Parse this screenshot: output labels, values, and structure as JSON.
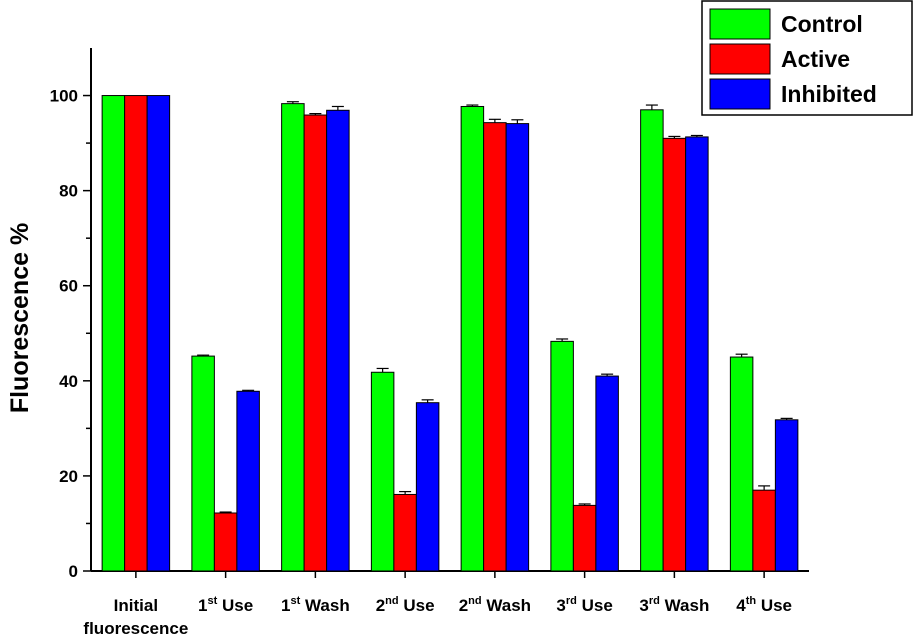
{
  "chart_data": {
    "type": "bar",
    "title": "",
    "ylabel": "Fluorescence %",
    "xlabel": "",
    "ylim": [
      0,
      110
    ],
    "yticks": [
      "0",
      "20",
      "40",
      "60",
      "80",
      "100"
    ],
    "grid": false,
    "legend_position": "top-right",
    "categories": [
      {
        "base": "Initial",
        "sup": "",
        "rest": "",
        "line2": "fluorescence"
      },
      {
        "base": "1",
        "sup": "st",
        "rest": " Use",
        "line2": ""
      },
      {
        "base": "1",
        "sup": "st",
        "rest": " Wash",
        "line2": ""
      },
      {
        "base": "2",
        "sup": "nd",
        "rest": " Use",
        "line2": ""
      },
      {
        "base": "2",
        "sup": "nd",
        "rest": " Wash",
        "line2": ""
      },
      {
        "base": "3",
        "sup": "rd",
        "rest": " Use",
        "line2": ""
      },
      {
        "base": "3",
        "sup": "rd",
        "rest": " Wash",
        "line2": ""
      },
      {
        "base": "4",
        "sup": "th",
        "rest": " Use",
        "line2": ""
      }
    ],
    "series": [
      {
        "name": "Control",
        "color": "#00ff00",
        "values": [
          100,
          45.2,
          98.3,
          41.8,
          97.7,
          48.3,
          97.0,
          45.0
        ],
        "errors": [
          0,
          0.2,
          0.4,
          0.8,
          0.3,
          0.5,
          1.0,
          0.6
        ]
      },
      {
        "name": "Active",
        "color": "#ff0000",
        "values": [
          100,
          12.2,
          95.9,
          16.1,
          94.3,
          13.8,
          91.0,
          17.0
        ],
        "errors": [
          0,
          0.2,
          0.3,
          0.6,
          0.7,
          0.3,
          0.4,
          0.9
        ]
      },
      {
        "name": "Inhibited",
        "color": "#0000ff",
        "values": [
          100,
          37.8,
          96.9,
          35.4,
          94.1,
          41.0,
          91.3,
          31.8
        ],
        "errors": [
          0,
          0.2,
          0.8,
          0.6,
          0.8,
          0.4,
          0.3,
          0.3
        ]
      }
    ]
  }
}
